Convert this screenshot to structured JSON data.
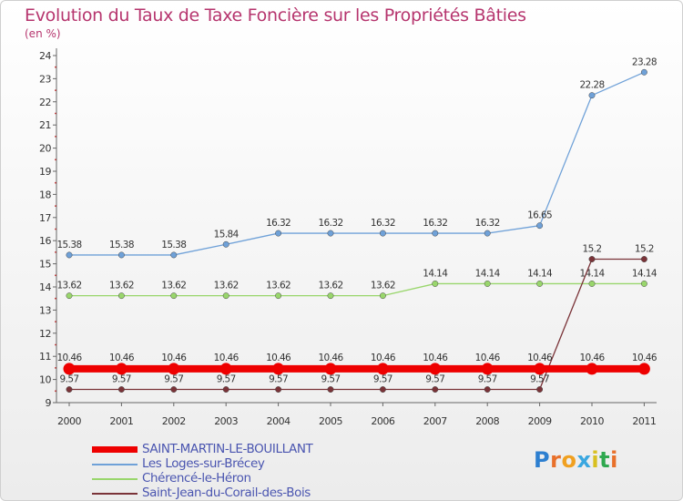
{
  "title": "Evolution du Taux de Taxe Foncière sur les Propriétés Bâties",
  "subtitle": "(en %)",
  "logo_text": "Proxiti",
  "chart_data": {
    "type": "line",
    "title": "Evolution du Taux de Taxe Foncière sur les Propriétés Bâties",
    "ylabel": "(en %)",
    "xlabel": "",
    "ylim": [
      9,
      24
    ],
    "yticks": [
      "9",
      "10",
      "11",
      "12",
      "13",
      "14",
      "15",
      "16",
      "17",
      "18",
      "19",
      "20",
      "21",
      "22",
      "23",
      "24"
    ],
    "categories": [
      "2000",
      "2001",
      "2002",
      "2003",
      "2004",
      "2005",
      "2006",
      "2007",
      "2008",
      "2009",
      "2010",
      "2011"
    ],
    "series": [
      {
        "name": "Les Loges-sur-Brécey",
        "color": "#6fa1d8",
        "values": [
          15.38,
          15.38,
          15.38,
          15.84,
          16.32,
          16.32,
          16.32,
          16.32,
          16.32,
          16.65,
          22.28,
          23.28
        ],
        "labels": [
          "15.38",
          "15.38",
          "15.38",
          "15.84",
          "16.32",
          "16.32",
          "16.32",
          "16.32",
          "16.32",
          "16.65",
          "22.28",
          "23.28"
        ]
      },
      {
        "name": "Chérencé-le-Héron",
        "color": "#99d66c",
        "values": [
          13.62,
          13.62,
          13.62,
          13.62,
          13.62,
          13.62,
          13.62,
          14.14,
          14.14,
          14.14,
          14.14,
          14.14
        ],
        "labels": [
          "13.62",
          "13.62",
          "13.62",
          "13.62",
          "13.62",
          "13.62",
          "13.62",
          "14.14",
          "14.14",
          "14.14",
          "14.14",
          "14.14"
        ]
      },
      {
        "name": "Saint-Jean-du-Corail-des-Bois",
        "color": "#7a3338",
        "values": [
          9.57,
          9.57,
          9.57,
          9.57,
          9.57,
          9.57,
          9.57,
          9.57,
          9.57,
          9.57,
          15.2,
          15.2
        ],
        "labels": [
          "9.57",
          "9.57",
          "9.57",
          "9.57",
          "9.57",
          "9.57",
          "9.57",
          "9.57",
          "9.57",
          "9.57",
          "15.2",
          "15.2"
        ]
      },
      {
        "name": "SAINT-MARTIN-LE-BOUILLANT",
        "color": "#ee0000",
        "values": [
          10.46,
          10.46,
          10.46,
          10.46,
          10.46,
          10.46,
          10.46,
          10.46,
          10.46,
          10.46,
          10.46,
          10.46
        ],
        "labels": [
          "10.46",
          "10.46",
          "10.46",
          "10.46",
          "10.46",
          "10.46",
          "10.46",
          "10.46",
          "10.46",
          "10.46",
          "10.46",
          "10.46"
        ]
      }
    ],
    "legend": [
      {
        "name": "SAINT-MARTIN-LE-BOUILLANT",
        "color": "#ee0000",
        "weight": "thick"
      },
      {
        "name": "Les Loges-sur-Brécey",
        "color": "#6fa1d8",
        "weight": "thin"
      },
      {
        "name": "Chérencé-le-Héron",
        "color": "#99d66c",
        "weight": "thin"
      },
      {
        "name": "Saint-Jean-du-Corail-des-Bois",
        "color": "#7a3338",
        "weight": "thin"
      }
    ]
  }
}
